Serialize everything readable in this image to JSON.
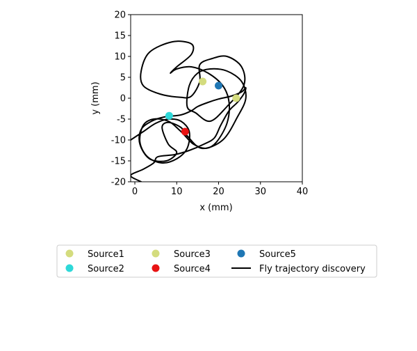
{
  "chart_data": {
    "type": "scatter",
    "xlabel": "x (mm)",
    "ylabel": "y (mm)",
    "xlim": [
      -1,
      40
    ],
    "ylim": [
      -20,
      20
    ],
    "xticks": [
      0,
      10,
      20,
      30,
      40
    ],
    "yticks": [
      20,
      15,
      10,
      5,
      0,
      -5,
      -10,
      -15,
      -20
    ],
    "grid": false,
    "legend_placement": "below",
    "sources": [
      {
        "name": "Source1",
        "x": 16.2,
        "y": 4.0,
        "color": "#d4dc7e"
      },
      {
        "name": "Source2",
        "x": 8.2,
        "y": -4.2,
        "color": "#2ed8d8"
      },
      {
        "name": "Source3",
        "x": 24.2,
        "y": 0.0,
        "color": "#d4dc7e"
      },
      {
        "name": "Source4",
        "x": 12.0,
        "y": -8.0,
        "color": "#e81313"
      },
      {
        "name": "Source5",
        "x": 20.0,
        "y": 3.0,
        "color": "#1f77b4"
      }
    ],
    "trajectory": {
      "name": "Fly trajectory discovery",
      "color": "#000000",
      "points": [
        [
          -1,
          -10
        ],
        [
          2,
          -8
        ],
        [
          5,
          -6
        ],
        [
          8,
          -5
        ],
        [
          11,
          -5.5
        ],
        [
          13,
          -8
        ],
        [
          12.5,
          -12
        ],
        [
          10,
          -14.5
        ],
        [
          6.5,
          -15.5
        ],
        [
          3,
          -14
        ],
        [
          1.2,
          -10.5
        ],
        [
          2,
          -6.5
        ],
        [
          4.5,
          -5
        ],
        [
          8,
          -5.5
        ],
        [
          10.5,
          -7.5
        ],
        [
          12,
          -9
        ],
        [
          14,
          -11
        ],
        [
          17,
          -12
        ],
        [
          19.5,
          -10.5
        ],
        [
          22,
          -6
        ],
        [
          22.5,
          -1
        ],
        [
          21,
          3
        ],
        [
          17.5,
          6
        ],
        [
          13.5,
          7.5
        ],
        [
          10,
          7
        ],
        [
          8.5,
          6
        ],
        [
          10,
          7.5
        ],
        [
          13.5,
          10.5
        ],
        [
          13.5,
          13
        ],
        [
          9,
          13.5
        ],
        [
          3.5,
          11
        ],
        [
          1.5,
          6.5
        ],
        [
          2,
          3
        ],
        [
          6,
          1
        ],
        [
          11,
          0.2
        ],
        [
          13.5,
          0.5
        ],
        [
          15.5,
          4
        ],
        [
          15.5,
          8
        ],
        [
          18.5,
          9.5
        ],
        [
          22,
          10
        ],
        [
          25.5,
          7.5
        ],
        [
          26,
          3
        ],
        [
          22,
          -2
        ],
        [
          18,
          -5.5
        ],
        [
          14.5,
          -3.5
        ],
        [
          12.5,
          -2
        ],
        [
          13,
          3
        ],
        [
          15,
          6
        ],
        [
          18,
          7
        ],
        [
          22,
          6.5
        ],
        [
          25.5,
          4
        ],
        [
          26.5,
          0
        ],
        [
          24.5,
          -4.5
        ],
        [
          21,
          -10
        ],
        [
          16,
          -12
        ],
        [
          12.5,
          -9
        ],
        [
          11,
          -7
        ],
        [
          8,
          -5.8
        ],
        [
          6.5,
          -7
        ],
        [
          8,
          -11
        ],
        [
          10,
          -13
        ],
        [
          7.5,
          -15
        ],
        [
          3.5,
          -14.5
        ],
        [
          1.2,
          -11
        ],
        [
          1.5,
          -7.5
        ],
        [
          4,
          -5.5
        ],
        [
          7,
          -4.5
        ],
        [
          11,
          -4
        ],
        [
          13.5,
          -3
        ],
        [
          15,
          -2
        ],
        [
          17.5,
          -1
        ],
        [
          20,
          -0.2
        ],
        [
          23,
          0.5
        ],
        [
          25.5,
          1.5
        ],
        [
          26.5,
          2.5
        ],
        [
          26,
          1
        ],
        [
          24.5,
          -1
        ],
        [
          22.5,
          -3
        ],
        [
          20.5,
          -6.5
        ],
        [
          19,
          -9.5
        ],
        [
          16.5,
          -11
        ],
        [
          13,
          -12.5
        ],
        [
          9.5,
          -13.5
        ],
        [
          5.5,
          -14
        ],
        [
          4.5,
          -15.5
        ],
        [
          2,
          -17
        ],
        [
          -1,
          -18.5
        ],
        [
          1.5,
          -20
        ]
      ]
    }
  },
  "legend": {
    "items": [
      {
        "label": "Source1",
        "kind": "marker",
        "color": "#d4dc7e"
      },
      {
        "label": "Source2",
        "kind": "marker",
        "color": "#2ed8d8"
      },
      {
        "label": "Source3",
        "kind": "marker",
        "color": "#d4dc7e"
      },
      {
        "label": "Source4",
        "kind": "marker",
        "color": "#e81313"
      },
      {
        "label": "Source5",
        "kind": "marker",
        "color": "#1f77b4"
      },
      {
        "label": "Fly trajectory discovery",
        "kind": "line",
        "color": "#000000"
      }
    ]
  }
}
